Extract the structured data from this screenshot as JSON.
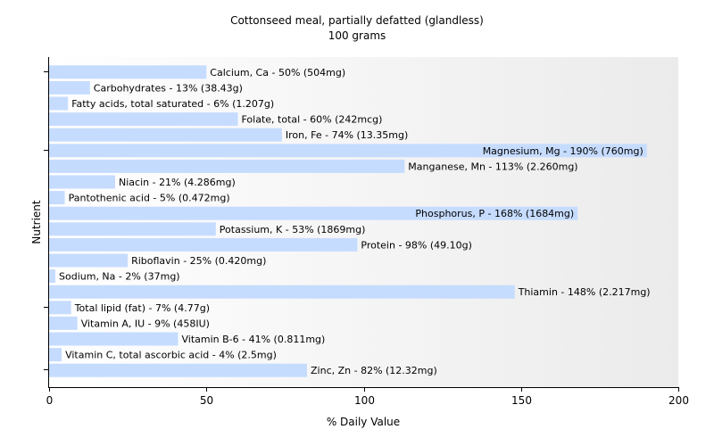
{
  "chart_data": {
    "type": "bar",
    "orientation": "horizontal",
    "title": "Cottonseed meal, partially defatted (glandless)",
    "subtitle": "100 grams",
    "xlabel": "% Daily Value",
    "ylabel": "Nutrient",
    "xlim": [
      0,
      200
    ],
    "xticks": [
      0,
      50,
      100,
      150,
      200
    ],
    "bar_color": "#c6dcff",
    "background_gradient": [
      "#ffffff",
      "#ebebeb"
    ],
    "categories": [
      "Calcium, Ca",
      "Carbohydrates",
      "Fatty acids, total saturated",
      "Folate, total",
      "Iron, Fe",
      "Magnesium, Mg",
      "Manganese, Mn",
      "Niacin",
      "Pantothenic acid",
      "Phosphorus, P",
      "Potassium, K",
      "Protein",
      "Riboflavin",
      "Sodium, Na",
      "Thiamin",
      "Total lipid (fat)",
      "Vitamin A, IU",
      "Vitamin B-6",
      "Vitamin C, total ascorbic acid",
      "Zinc, Zn"
    ],
    "values": [
      50,
      13,
      6,
      60,
      74,
      190,
      113,
      21,
      5,
      168,
      53,
      98,
      25,
      2,
      148,
      7,
      9,
      41,
      4,
      82
    ],
    "labels": [
      "Calcium, Ca - 50% (504mg)",
      "Carbohydrates - 13% (38.43g)",
      "Fatty acids, total saturated - 6% (1.207g)",
      "Folate, total - 60% (242mcg)",
      "Iron, Fe - 74% (13.35mg)",
      "Magnesium, Mg - 190% (760mg)",
      "Manganese, Mn - 113% (2.260mg)",
      "Niacin - 21% (4.286mg)",
      "Pantothenic acid - 5% (0.472mg)",
      "Phosphorus, P - 168% (1684mg)",
      "Potassium, K - 53% (1869mg)",
      "Protein - 98% (49.10g)",
      "Riboflavin - 25% (0.420mg)",
      "Sodium, Na - 2% (37mg)",
      "Thiamin - 148% (2.217mg)",
      "Total lipid (fat) - 7% (4.77g)",
      "Vitamin A, IU - 9% (458IU)",
      "Vitamin B-6 - 41% (0.811mg)",
      "Vitamin C, total ascorbic acid - 4% (2.5mg)",
      "Zinc, Zn - 82% (12.32mg)"
    ],
    "grid": false,
    "legend": "none"
  }
}
